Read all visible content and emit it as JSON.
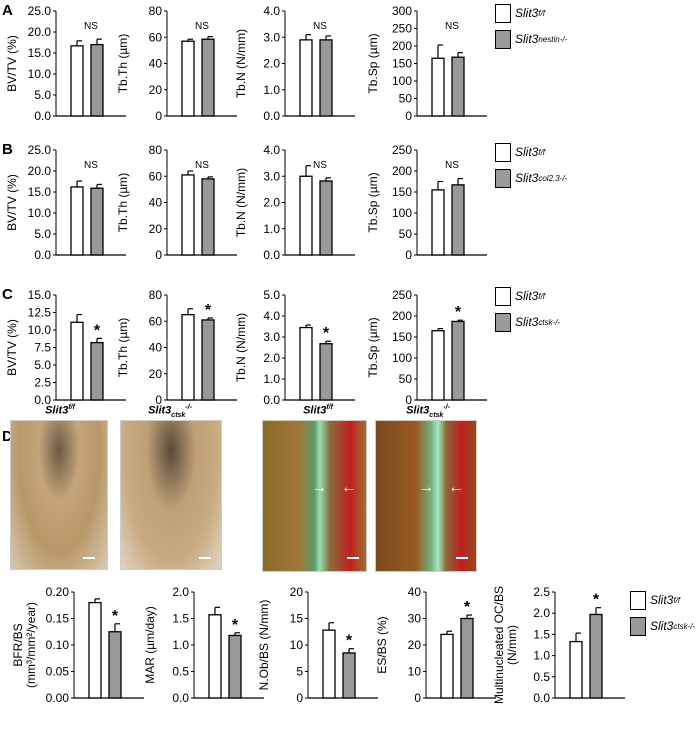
{
  "panels": {
    "A": "A",
    "B": "B",
    "C": "C",
    "D": "D"
  },
  "legends": [
    {
      "wt": "Slit3",
      "wt_sup": "f/f",
      "ko": "Slit3",
      "ko_sub": "nestin",
      "ko_sup": "-/-"
    },
    {
      "wt": "Slit3",
      "wt_sup": "f/f",
      "ko": "Slit3",
      "ko_sub": "col2.3",
      "ko_sup": "-/-"
    },
    {
      "wt": "Slit3",
      "wt_sup": "f/f",
      "ko": "Slit3",
      "ko_sub": "ctsk",
      "ko_sup": "-/-"
    },
    {
      "wt": "Slit3",
      "wt_sup": "f/f",
      "ko": "Slit3",
      "ko_sub": "ctsk",
      "ko_sup": "-/-"
    }
  ],
  "images": [
    {
      "label": "Slit3",
      "sup": "f/f",
      "sub": ""
    },
    {
      "label": "Slit3",
      "sup": "-/-",
      "sub": "ctsk"
    },
    {
      "label": "Slit3",
      "sup": "f/f",
      "sub": ""
    },
    {
      "label": "Slit3",
      "sup": "-/-",
      "sub": "ctsk"
    }
  ],
  "colors": {
    "wt": "#ffffff",
    "ko": "#999999",
    "axis": "#000000"
  },
  "chart_data": [
    {
      "type": "bar",
      "panel": "A",
      "ylabel": "BV/TV (%)",
      "ylim": [
        0,
        25
      ],
      "ticks": [
        "0.0",
        "5.0",
        "10.0",
        "15.0",
        "20.0",
        "25.0"
      ],
      "values": [
        16.7,
        17.0
      ],
      "errors": [
        1.2,
        1.3
      ],
      "sig": "NS"
    },
    {
      "type": "bar",
      "panel": "A",
      "ylabel": "Tb.Th (µm)",
      "ylim": [
        0,
        80
      ],
      "ticks": [
        "0",
        "20",
        "40",
        "60",
        "80"
      ],
      "values": [
        57,
        58.5
      ],
      "errors": [
        1.5,
        2
      ],
      "sig": "NS"
    },
    {
      "type": "bar",
      "panel": "A",
      "ylabel": "Tb.N (N/mm)",
      "ylim": [
        0,
        4
      ],
      "ticks": [
        "0.0",
        "1.0",
        "2.0",
        "3.0",
        "4.0"
      ],
      "values": [
        2.9,
        2.9
      ],
      "errors": [
        0.2,
        0.15
      ],
      "sig": "NS"
    },
    {
      "type": "bar",
      "panel": "A",
      "ylabel": "Tb.Sp (µm)",
      "ylim": [
        0,
        300
      ],
      "ticks": [
        "0",
        "50",
        "100",
        "150",
        "200",
        "250",
        "300"
      ],
      "values": [
        165,
        168
      ],
      "errors": [
        38,
        13
      ],
      "sig": "NS"
    },
    {
      "type": "bar",
      "panel": "B",
      "ylabel": "BV/TV (%)",
      "ylim": [
        0,
        25
      ],
      "ticks": [
        "0.0",
        "5.0",
        "10.0",
        "15.0",
        "20.0",
        "25.0"
      ],
      "values": [
        16.2,
        15.9
      ],
      "errors": [
        1.4,
        0.9
      ],
      "sig": "NS"
    },
    {
      "type": "bar",
      "panel": "B",
      "ylabel": "Tb.Th (µm)",
      "ylim": [
        0,
        80
      ],
      "ticks": [
        "0",
        "20",
        "40",
        "60",
        "80"
      ],
      "values": [
        61,
        58
      ],
      "errors": [
        3,
        1.5
      ],
      "sig": "NS"
    },
    {
      "type": "bar",
      "panel": "B",
      "ylabel": "Tb.N (N/mm)",
      "ylim": [
        0,
        4
      ],
      "ticks": [
        "0.0",
        "1.0",
        "2.0",
        "3.0",
        "4.0"
      ],
      "values": [
        3.0,
        2.82
      ],
      "errors": [
        0.4,
        0.12
      ],
      "sig": "NS"
    },
    {
      "type": "bar",
      "panel": "B",
      "ylabel": "Tb.Sp (µm)",
      "ylim": [
        0,
        250
      ],
      "ticks": [
        "0",
        "50",
        "100",
        "150",
        "200",
        "250"
      ],
      "values": [
        155,
        167
      ],
      "errors": [
        20,
        15
      ],
      "sig": "NS"
    },
    {
      "type": "bar",
      "panel": "C",
      "ylabel": "BV/TV (%)",
      "ylim": [
        0,
        15
      ],
      "ticks": [
        "0.0",
        "2.5",
        "5.0",
        "7.5",
        "10.0",
        "12.5",
        "15.0"
      ],
      "values": [
        11.1,
        8.2
      ],
      "errors": [
        1.1,
        0.6
      ],
      "sig": "*"
    },
    {
      "type": "bar",
      "panel": "C",
      "ylabel": "Tb.Th (µm)",
      "ylim": [
        0,
        80
      ],
      "ticks": [
        "0",
        "20",
        "40",
        "60",
        "80"
      ],
      "values": [
        65,
        61
      ],
      "errors": [
        4.5,
        1.5
      ],
      "sig": "*"
    },
    {
      "type": "bar",
      "panel": "C",
      "ylabel": "Tb.N (N/mm)",
      "ylim": [
        0,
        5
      ],
      "ticks": [
        "0.0",
        "1.0",
        "2.0",
        "3.0",
        "4.0",
        "5.0"
      ],
      "values": [
        3.45,
        2.68
      ],
      "errors": [
        0.12,
        0.12
      ],
      "sig": "*"
    },
    {
      "type": "bar",
      "panel": "C",
      "ylabel": "Tb.Sp (µm)",
      "ylim": [
        0,
        250
      ],
      "ticks": [
        "0",
        "50",
        "100",
        "150",
        "200",
        "250"
      ],
      "values": [
        165,
        187
      ],
      "errors": [
        5,
        3
      ],
      "sig": "*"
    },
    {
      "type": "bar",
      "panel": "D",
      "ylabel": "BFR/BS",
      "ylabel2": "(mm³/mm²/year)",
      "ylim": [
        0,
        0.2
      ],
      "ticks": [
        "0.00",
        "0.05",
        "0.10",
        "0.15",
        "0.20"
      ],
      "values": [
        0.18,
        0.125
      ],
      "errors": [
        0.007,
        0.015
      ],
      "sig": "*"
    },
    {
      "type": "bar",
      "panel": "D",
      "ylabel": "MAR (µm/day)",
      "ylim": [
        0,
        2
      ],
      "ticks": [
        "0.0",
        "0.5",
        "1.0",
        "1.5",
        "2.0"
      ],
      "values": [
        1.57,
        1.18
      ],
      "errors": [
        0.14,
        0.05
      ],
      "sig": "*"
    },
    {
      "type": "bar",
      "panel": "D",
      "ylabel": "N.Ob/BS (N/mm)",
      "ylim": [
        0,
        20
      ],
      "ticks": [
        "0",
        "5",
        "10",
        "15",
        "20"
      ],
      "values": [
        12.8,
        8.5
      ],
      "errors": [
        1.4,
        0.8
      ],
      "sig": "*"
    },
    {
      "type": "bar",
      "panel": "D",
      "ylabel": "ES/BS (%)",
      "ylim": [
        0,
        40
      ],
      "ticks": [
        "0",
        "10",
        "20",
        "30",
        "40"
      ],
      "values": [
        24,
        30
      ],
      "errors": [
        1.2,
        1.3
      ],
      "sig": "*"
    },
    {
      "type": "bar",
      "panel": "D",
      "ylabel": "Multinucleated OC/BS",
      "ylabel2": "(N/mm)",
      "ylim": [
        0,
        2.5
      ],
      "ticks": [
        "0.0",
        "0.5",
        "1.0",
        "1.5",
        "2.0",
        "2.5"
      ],
      "values": [
        1.33,
        1.97
      ],
      "errors": [
        0.2,
        0.16
      ],
      "sig": "*"
    }
  ]
}
